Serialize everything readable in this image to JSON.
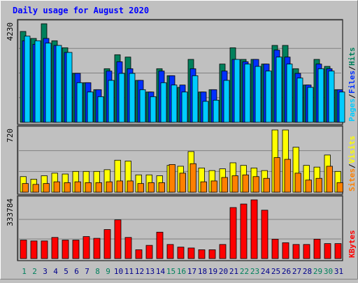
{
  "chart_data": {
    "type": "bar",
    "title": "Daily usage for August 2020",
    "categories": [
      "1",
      "2",
      "3",
      "4",
      "5",
      "6",
      "7",
      "8",
      "9",
      "10",
      "11",
      "12",
      "13",
      "14",
      "15",
      "16",
      "17",
      "18",
      "19",
      "20",
      "21",
      "22",
      "23",
      "24",
      "25",
      "26",
      "27",
      "28",
      "29",
      "30",
      "31"
    ],
    "weekend_days": [
      "1",
      "2",
      "8",
      "9",
      "15",
      "16",
      "22",
      "23",
      "29",
      "30"
    ],
    "panels": [
      {
        "name": "hits-files-pages",
        "ymax_label": "4230",
        "ymax": 4230,
        "series": [
          {
            "name": "Hits",
            "color": "#00805c",
            "values": [
              3900,
              3600,
              4230,
              3500,
              3200,
              2100,
              1700,
              1400,
              2300,
              2900,
              2800,
              1800,
              1300,
              2300,
              2000,
              1500,
              2700,
              1300,
              1400,
              2500,
              3200,
              2700,
              2700,
              2500,
              3300,
              3300,
              2300,
              1600,
              2700,
              2400,
              1400
            ]
          },
          {
            "name": "Files",
            "color": "#0030ff",
            "values": [
              3500,
              3350,
              3600,
              3300,
              3000,
              2100,
              1700,
              1400,
              2200,
              2600,
              2300,
              1800,
              1300,
              2200,
              2000,
              1600,
              2300,
              1300,
              1400,
              2200,
              2700,
              2600,
              2700,
              2500,
              3100,
              2800,
              2100,
              1600,
              2500,
              2300,
              1400
            ]
          },
          {
            "name": "Pages",
            "color": "#00ccff",
            "values": [
              3700,
              3500,
              3400,
              3300,
              3000,
              1700,
              1300,
              1100,
              1800,
              2100,
              2100,
              1400,
              1100,
              1700,
              1600,
              1300,
              2000,
              900,
              950,
              1800,
              2700,
              2500,
              2400,
              2200,
              2800,
              2500,
              1900,
              1500,
              2300,
              2200,
              1300
            ]
          }
        ],
        "legend": [
          "Pages",
          "Files",
          "Hits"
        ]
      },
      {
        "name": "visits-sites",
        "ymax_label": "720",
        "ymax": 720,
        "series": [
          {
            "name": "Visits",
            "color": "#ffff00",
            "values": [
              180,
              150,
              190,
              220,
              210,
              240,
              240,
              240,
              260,
              370,
              360,
              200,
              200,
              190,
              310,
              300,
              470,
              280,
              250,
              270,
              340,
              310,
              280,
              250,
              720,
              720,
              520,
              310,
              290,
              430,
              240
            ]
          },
          {
            "name": "Sites",
            "color": "#ff8000",
            "values": [
              100,
              90,
              100,
              120,
              110,
              120,
              110,
              110,
              120,
              130,
              130,
              100,
              110,
              110,
              320,
              220,
              330,
              120,
              130,
              170,
              190,
              200,
              180,
              160,
              400,
              380,
              220,
              140,
              160,
              300,
              110
            ]
          }
        ],
        "legend": [
          "Sites",
          "Visits"
        ]
      },
      {
        "name": "kbytes",
        "ymax_label": "333784",
        "ymax": 333784,
        "series": [
          {
            "name": "KBytes",
            "color": "#ff0000",
            "values": [
              105000,
              100000,
              100000,
              120000,
              105000,
              105000,
              125000,
              115000,
              165000,
              220000,
              120000,
              50000,
              75000,
              150000,
              80000,
              65000,
              60000,
              50000,
              50000,
              80000,
              290000,
              310000,
              333784,
              275000,
              110000,
              90000,
              80000,
              80000,
              110000,
              85000,
              85000
            ]
          }
        ],
        "legend": [
          "KBytes"
        ]
      }
    ],
    "colors": {
      "weekday_label": "#00008b",
      "weekend_label": "#00805c",
      "title": "#0000ff",
      "separator": "#000000"
    }
  }
}
